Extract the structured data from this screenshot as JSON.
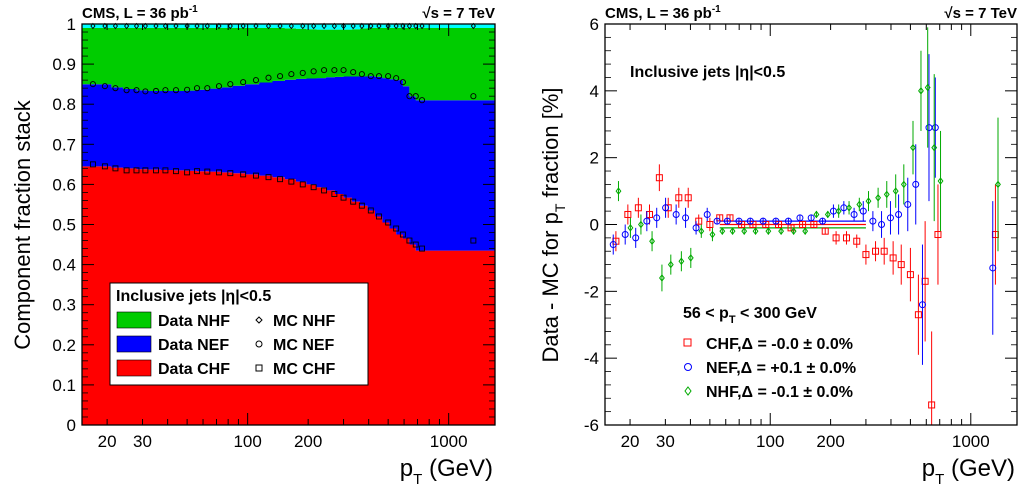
{
  "colors": {
    "chf": "#ff0000",
    "nef": "#0000ff",
    "nhf": "#00cc00",
    "top": "#00ffff",
    "axis": "#000000"
  },
  "chart_data": [
    {
      "type": "area",
      "header_left": "CMS, L = 36 pb",
      "header_left_sup": "-1",
      "header_right": "= 7 TeV",
      "header_right_sqrt": "√s",
      "ylabel": "Component fraction stack",
      "xlabel": "p",
      "xlabel_sub": "T",
      "xlabel_unit": " (GeV)",
      "xscale": "log",
      "xlim": [
        15,
        1700
      ],
      "ylim": [
        0,
        1
      ],
      "yticks": [
        "0",
        "0.1",
        "0.2",
        "0.3",
        "0.4",
        "0.5",
        "0.6",
        "0.7",
        "0.8",
        "0.9",
        "1"
      ],
      "xticks": [
        "20",
        "30",
        "100",
        "200",
        "1000"
      ],
      "legend": {
        "title": "Inclusive jets |η|<0.5",
        "entries": [
          "Data NHF",
          "MC NHF",
          "Data NEF",
          "MC NEF",
          "Data CHF",
          "MC CHF"
        ],
        "placement": "bottom-left"
      },
      "x": [
        15,
        18,
        21,
        24,
        28,
        32,
        37,
        43,
        49,
        56,
        64,
        74,
        84,
        97,
        114,
        133,
        153,
        174,
        196,
        220,
        245,
        272,
        300,
        330,
        362,
        395,
        430,
        468,
        507,
        548,
        592,
        638,
        686,
        737,
        790,
        846,
        905,
        967,
        1032,
        1101,
        1172,
        1248,
        1327,
        1410,
        1497,
        1588,
        1700
      ],
      "series": [
        {
          "name": "CHF",
          "values": [
            0.645,
            0.645,
            0.642,
            0.64,
            0.638,
            0.637,
            0.636,
            0.635,
            0.634,
            0.633,
            0.632,
            0.63,
            0.628,
            0.625,
            0.622,
            0.618,
            0.613,
            0.607,
            0.6,
            0.593,
            0.585,
            0.576,
            0.567,
            0.557,
            0.547,
            0.535,
            0.52,
            0.505,
            0.49,
            0.475,
            0.465,
            0.45,
            0.435,
            0.435,
            0.435,
            0.435,
            0.435,
            0.435,
            0.435,
            0.435,
            0.435,
            0.435,
            0.435,
            0.435,
            0.435,
            0.435,
            0.435
          ]
        },
        {
          "name": "NEF",
          "values": [
            0.205,
            0.205,
            0.2,
            0.198,
            0.197,
            0.196,
            0.197,
            0.198,
            0.2,
            0.203,
            0.207,
            0.212,
            0.218,
            0.225,
            0.232,
            0.24,
            0.248,
            0.256,
            0.264,
            0.272,
            0.282,
            0.292,
            0.302,
            0.312,
            0.322,
            0.335,
            0.348,
            0.36,
            0.372,
            0.385,
            0.38,
            0.37,
            0.375,
            0.375,
            0.375,
            0.375,
            0.375,
            0.375,
            0.375,
            0.375,
            0.375,
            0.375,
            0.375,
            0.375,
            0.375,
            0.375,
            0.375
          ]
        },
        {
          "name": "NHF",
          "values": [
            0.14,
            0.14,
            0.148,
            0.152,
            0.155,
            0.157,
            0.157,
            0.157,
            0.156,
            0.154,
            0.151,
            0.148,
            0.144,
            0.14,
            0.136,
            0.132,
            0.128,
            0.125,
            0.123,
            0.121,
            0.119,
            0.118,
            0.117,
            0.118,
            0.12,
            0.12,
            0.122,
            0.125,
            0.128,
            0.13,
            0.145,
            0.17,
            0.18,
            0.18,
            0.18,
            0.18,
            0.18,
            0.18,
            0.18,
            0.18,
            0.18,
            0.18,
            0.18,
            0.18,
            0.18,
            0.18,
            0.18
          ]
        },
        {
          "name": "other",
          "values": [
            0.01,
            0.01,
            0.01,
            0.01,
            0.01,
            0.01,
            0.01,
            0.01,
            0.01,
            0.01,
            0.01,
            0.01,
            0.01,
            0.01,
            0.01,
            0.01,
            0.01,
            0.012,
            0.013,
            0.014,
            0.014,
            0.014,
            0.014,
            0.013,
            0.011,
            0.01,
            0.01,
            0.01,
            0.01,
            0.01,
            0.01,
            0.01,
            0.01,
            0.01,
            0.01,
            0.01,
            0.01,
            0.01,
            0.01,
            0.01,
            0.01,
            0.01,
            0.01,
            0.01,
            0.01,
            0.01,
            0.01
          ]
        }
      ],
      "mc_points": {
        "x": [
          17,
          19.5,
          22,
          25,
          28,
          31,
          35,
          39,
          44,
          50,
          56,
          63,
          72,
          82,
          95,
          110,
          127,
          145,
          165,
          188,
          213,
          240,
          270,
          300,
          335,
          370,
          410,
          450,
          500,
          548,
          592,
          638,
          686,
          737,
          1327
        ],
        "chf": [
          0.65,
          0.645,
          0.64,
          0.635,
          0.635,
          0.635,
          0.635,
          0.635,
          0.633,
          0.63,
          0.633,
          0.632,
          0.63,
          0.628,
          0.625,
          0.622,
          0.618,
          0.613,
          0.607,
          0.6,
          0.593,
          0.585,
          0.576,
          0.567,
          0.557,
          0.547,
          0.535,
          0.52,
          0.505,
          0.49,
          0.475,
          0.46,
          0.45,
          0.44,
          0.46
        ],
        "nef_cum": [
          0.85,
          0.845,
          0.84,
          0.835,
          0.835,
          0.832,
          0.833,
          0.835,
          0.835,
          0.836,
          0.84,
          0.84,
          0.845,
          0.85,
          0.855,
          0.86,
          0.866,
          0.87,
          0.875,
          0.878,
          0.882,
          0.885,
          0.885,
          0.885,
          0.88,
          0.875,
          0.87,
          0.87,
          0.87,
          0.865,
          0.855,
          0.82,
          0.82,
          0.81,
          0.82
        ],
        "nhf_cum": [
          0.995,
          0.995,
          0.995,
          0.995,
          0.995,
          0.995,
          0.995,
          0.995,
          0.995,
          0.995,
          0.995,
          0.995,
          0.995,
          0.995,
          0.995,
          0.995,
          0.995,
          0.995,
          0.995,
          0.995,
          0.995,
          0.995,
          0.995,
          0.995,
          0.995,
          0.995,
          0.995,
          0.995,
          0.995,
          0.995,
          0.995,
          0.995,
          0.995,
          0.995,
          0.995
        ]
      }
    },
    {
      "type": "scatter",
      "header_left": "CMS, L = 36 pb",
      "header_left_sup": "-1",
      "header_right": "= 7 TeV",
      "header_right_sqrt": "√s",
      "ylabel": "Data - MC for p",
      "ylabel_sub": "T",
      "ylabel_end": " fraction  [%]",
      "xlabel": "p",
      "xlabel_sub": "T",
      "xlabel_unit": " (GeV)",
      "title": "Inclusive jets |η|<0.5",
      "fit_range_label": "56 < p",
      "fit_range_sub": "T",
      "fit_range_end": " < 300 GeV",
      "xscale": "log",
      "xlim": [
        15,
        1700
      ],
      "ylim": [
        -6,
        6
      ],
      "yticks": [
        "-6",
        "-4",
        "-2",
        "0",
        "2",
        "4",
        "6"
      ],
      "xticks": [
        "20",
        "30",
        "100",
        "200",
        "1000"
      ],
      "legend": {
        "entries": [
          "CHF,Δ = -0.0 ± 0.0%",
          "NEF,Δ = +0.1 ± 0.0%",
          "NHF,Δ = -0.1 ± 0.0%"
        ],
        "placement": "bottom-left"
      },
      "fit_range": [
        56,
        300
      ],
      "fit_values": [
        -0.0,
        0.1,
        -0.1
      ],
      "series": [
        {
          "name": "CHF",
          "x": [
            17,
            19.5,
            22,
            25,
            28,
            31,
            35,
            39,
            44,
            50,
            56,
            63,
            72,
            82,
            95,
            110,
            127,
            145,
            165,
            188,
            213,
            240,
            270,
            300,
            335,
            370,
            410,
            450,
            500,
            548,
            592,
            638,
            686,
            1327
          ],
          "y": [
            -0.5,
            0.3,
            0.5,
            0.3,
            1.4,
            0.5,
            0.8,
            0.8,
            0.1,
            0.0,
            0.2,
            0.2,
            0.0,
            0.0,
            0.0,
            0.0,
            -0.1,
            0.0,
            0.0,
            -0.2,
            -0.4,
            -0.4,
            -0.5,
            -0.9,
            -0.8,
            -0.8,
            -1.0,
            -1.2,
            -1.5,
            -2.7,
            -1.7,
            -5.4,
            -0.3,
            -0.3
          ],
          "err": [
            0.3,
            0.3,
            0.3,
            0.3,
            0.4,
            0.3,
            0.3,
            0.3,
            0.2,
            0.2,
            0.1,
            0.1,
            0.1,
            0.1,
            0.1,
            0.1,
            0.1,
            0.1,
            0.1,
            0.1,
            0.2,
            0.2,
            0.2,
            0.3,
            0.3,
            0.4,
            0.5,
            0.6,
            0.8,
            1.2,
            1.8,
            2.2,
            1.5,
            1.5
          ]
        },
        {
          "name": "NEF",
          "x": [
            17,
            19.5,
            22,
            25,
            28,
            31,
            35,
            39,
            44,
            50,
            56,
            63,
            72,
            82,
            95,
            110,
            127,
            145,
            165,
            188,
            213,
            240,
            270,
            300,
            335,
            370,
            410,
            450,
            500,
            548,
            592,
            638,
            686,
            1327
          ],
          "y": [
            -0.6,
            -0.3,
            -0.4,
            0.1,
            0.2,
            0.5,
            0.3,
            0.2,
            -0.1,
            0.3,
            0.1,
            0.1,
            0.1,
            0.1,
            0.1,
            0.1,
            0.1,
            0.2,
            0.2,
            0.1,
            0.4,
            0.5,
            0.3,
            0.4,
            0.1,
            0.0,
            0.2,
            0.3,
            0.6,
            1.2,
            -2.4,
            2.9,
            2.9,
            -1.3
          ],
          "err": [
            0.3,
            0.3,
            0.3,
            0.3,
            0.3,
            0.3,
            0.3,
            0.3,
            0.2,
            0.2,
            0.1,
            0.1,
            0.1,
            0.1,
            0.1,
            0.1,
            0.1,
            0.1,
            0.1,
            0.1,
            0.2,
            0.2,
            0.2,
            0.3,
            0.3,
            0.4,
            0.5,
            0.6,
            0.8,
            1.2,
            1.8,
            2.2,
            1.5,
            2.0
          ]
        },
        {
          "name": "NHF",
          "x": [
            17,
            19.5,
            22,
            25,
            28,
            31,
            35,
            39,
            44,
            50,
            56,
            63,
            72,
            82,
            95,
            110,
            127,
            145,
            165,
            188,
            213,
            240,
            270,
            300,
            335,
            370,
            410,
            450,
            500,
            548,
            592,
            638,
            686,
            1327
          ],
          "y": [
            1.0,
            -0.1,
            0.0,
            -0.5,
            -1.6,
            -1.2,
            -1.1,
            -1.0,
            -0.2,
            -0.3,
            -0.2,
            -0.2,
            -0.2,
            -0.2,
            -0.2,
            -0.2,
            -0.2,
            -0.2,
            0.3,
            0.3,
            0.4,
            0.5,
            0.6,
            0.7,
            0.8,
            0.9,
            1.0,
            1.2,
            2.3,
            4.0,
            4.1,
            2.3,
            1.3,
            1.2
          ],
          "err": [
            0.3,
            0.3,
            0.3,
            0.3,
            0.4,
            0.3,
            0.3,
            0.3,
            0.2,
            0.2,
            0.1,
            0.1,
            0.1,
            0.1,
            0.1,
            0.1,
            0.1,
            0.1,
            0.1,
            0.1,
            0.2,
            0.2,
            0.2,
            0.3,
            0.3,
            0.4,
            0.5,
            0.6,
            0.8,
            1.2,
            1.8,
            2.2,
            1.5,
            2.0
          ]
        }
      ]
    }
  ]
}
